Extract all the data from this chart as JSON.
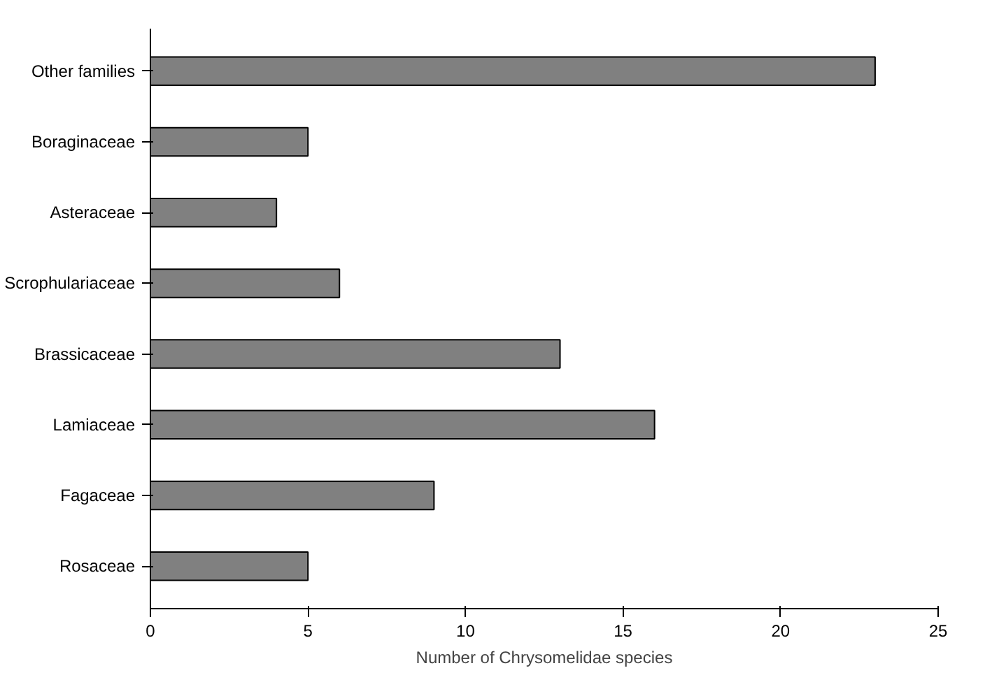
{
  "chart_data": {
    "type": "bar",
    "orientation": "horizontal",
    "xlabel": "Number of Chrysomelidae species",
    "categories": [
      "Other families",
      "Boraginaceae",
      "Asteraceae",
      "Scrophulariaceae",
      "Brassicaceae",
      "Lamiaceae",
      "Fagaceae",
      "Rosaceae"
    ],
    "values": [
      23,
      5,
      4,
      6,
      13,
      16,
      9,
      5
    ],
    "color": "#808080",
    "xlim": [
      0,
      25
    ],
    "xticks": [
      0,
      5,
      10,
      15,
      20,
      25
    ],
    "grid": false
  }
}
